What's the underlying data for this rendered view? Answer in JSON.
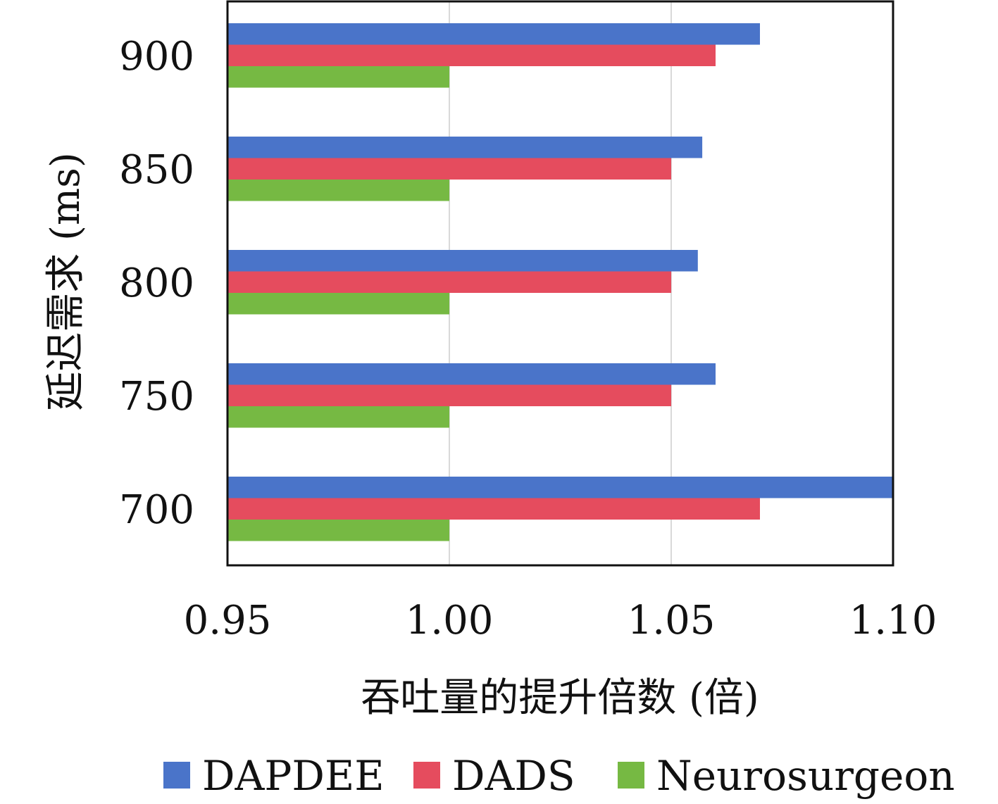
{
  "chart_data": {
    "type": "bar",
    "orientation": "horizontal",
    "title": "",
    "xlabel": "吞吐量的提升倍数 (倍)",
    "ylabel": "延迟需求 (ms)",
    "categories": [
      "900",
      "850",
      "800",
      "750",
      "700"
    ],
    "series": [
      {
        "name": "DAPDEE",
        "color": "#4a74c9",
        "values": [
          1.07,
          1.057,
          1.056,
          1.06,
          1.1
        ]
      },
      {
        "name": "DADS",
        "color": "#e54c5e",
        "values": [
          1.06,
          1.05,
          1.05,
          1.05,
          1.07
        ]
      },
      {
        "name": "Neurosurgeon",
        "color": "#76b943",
        "values": [
          1.0,
          1.0,
          1.0,
          1.0,
          1.0
        ]
      }
    ],
    "xlim": [
      0.95,
      1.1
    ],
    "xticks": [
      "0.95",
      "1.00",
      "1.05",
      "1.10"
    ],
    "grid": "vertical",
    "legend_position": "bottom"
  }
}
